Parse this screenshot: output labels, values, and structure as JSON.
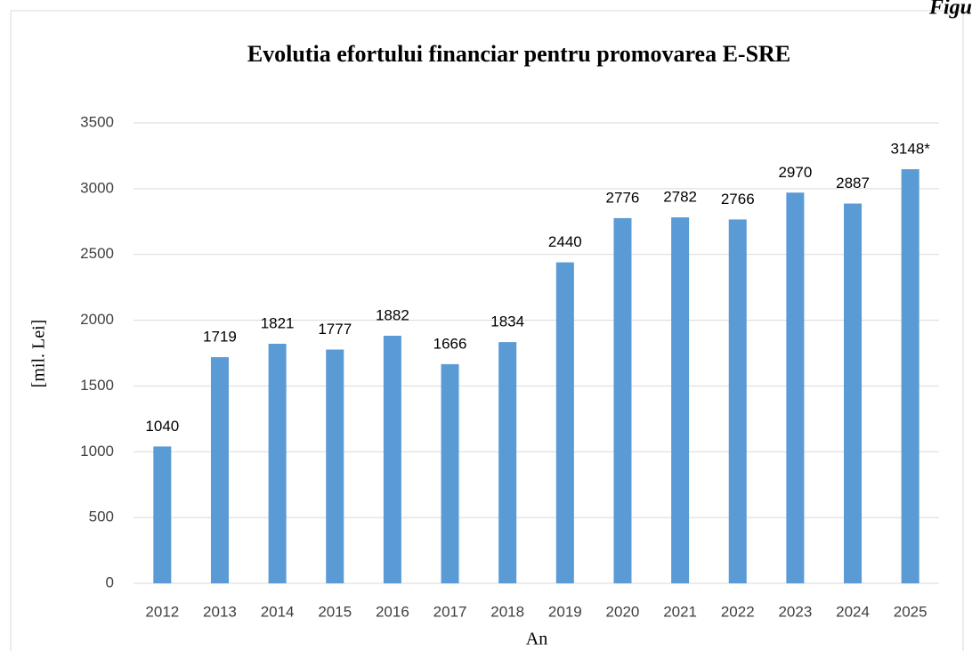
{
  "chart_data": {
    "type": "bar",
    "title": "Evolutia efortului financiar pentru  promovarea E-SRE",
    "annotation": "Figu",
    "x_label": "An",
    "y_label": "[mil. Lei]",
    "categories": [
      "2012",
      "2013",
      "2014",
      "2015",
      "2016",
      "2017",
      "2018",
      "2019",
      "2020",
      "2021",
      "2022",
      "2023",
      "2024",
      "2025"
    ],
    "values": [
      1040,
      1719,
      1821,
      1777,
      1882,
      1666,
      1834,
      2440,
      2776,
      2782,
      2766,
      2970,
      2887,
      3148
    ],
    "value_labels": [
      "1040",
      "1719",
      "1821",
      "1777",
      "1882",
      "1666",
      "1834",
      "2440",
      "2776",
      "2782",
      "2766",
      "2970",
      "2887",
      "3148*"
    ],
    "color": "#5b9bd5",
    "ylim": [
      0,
      3500
    ],
    "yticks": [
      0,
      500,
      1000,
      1500,
      2000,
      2500,
      3000,
      3500
    ],
    "grid": true
  }
}
